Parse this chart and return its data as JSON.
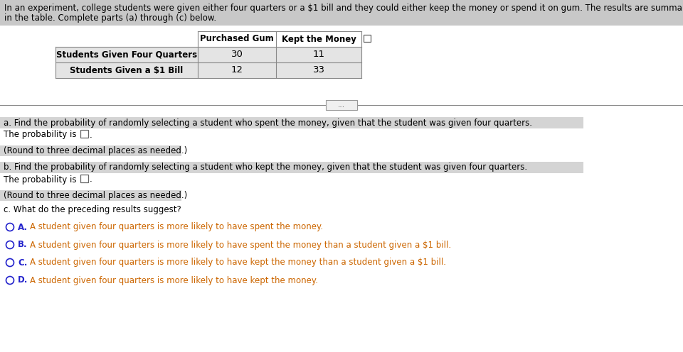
{
  "intro_line1": "In an experiment, college students were given either four quarters or a $1 bill and they could either keep the money or spend it on gum. The results are summarized",
  "intro_line2": "in the table. Complete parts (a) through (c) below.",
  "col_headers": [
    "",
    "Purchased Gum",
    "Kept the Money"
  ],
  "row1": [
    "Students Given Four Quarters",
    "30",
    "11"
  ],
  "row2": [
    "Students Given a $1 Bill",
    "12",
    "33"
  ],
  "part_a_q": "a. Find the probability of randomly selecting a student who spent the money, given that the student was given four quarters.",
  "part_b_q": "b. Find the probability of randomly selecting a student who kept the money, given that the student was given four quarters.",
  "part_c_q": "c. What do the preceding results suggest?",
  "prob_prefix": "The probability is",
  "round_note": "(Round to three decimal places as needed.)",
  "opt_A_letter": "A.",
  "opt_A_text": "  A student given four quarters is more likely to have spent the money.",
  "opt_B_letter": "B.",
  "opt_B_text": "  A student given four quarters is more likely to have spent the money than a student given a $1 bill.",
  "opt_C_letter": "C.",
  "opt_C_text": "  A student given four quarters is more likely to have kept the money than a student given a $1 bill.",
  "opt_D_letter": "D.",
  "opt_D_text": "  A student given four quarters is more likely to have kept the money.",
  "highlight_gray": "#c8c8c8",
  "light_gray": "#d4d4d4",
  "row_gray": "#e4e4e4",
  "white": "#ffffff",
  "black": "#000000",
  "orange": "#cc6600",
  "blue": "#2222cc",
  "line_color": "#888888",
  "btn_color": "#f0f0f0"
}
